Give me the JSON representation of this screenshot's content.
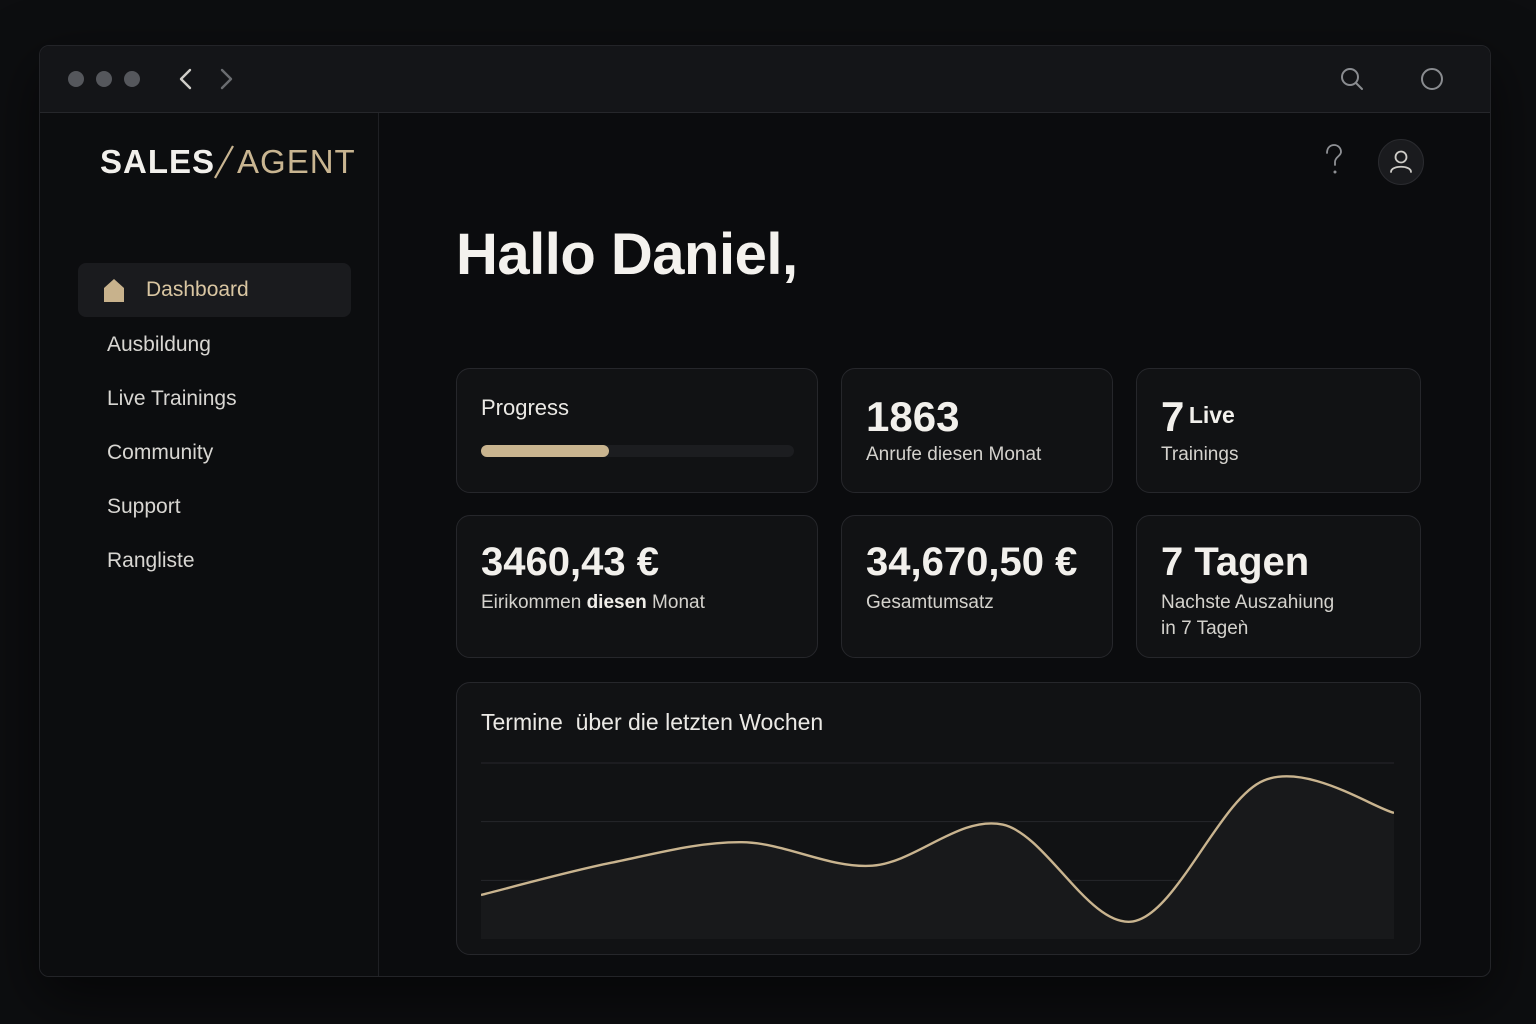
{
  "brand": {
    "part1": "SALES",
    "part2": "AGENT"
  },
  "sidebar": {
    "items": [
      {
        "label": "Dashboard",
        "active": true
      },
      {
        "label": "Ausbildung"
      },
      {
        "label": "Live Trainings"
      },
      {
        "label": "Community"
      },
      {
        "label": "Support"
      },
      {
        "label": "Rangliste"
      }
    ]
  },
  "header": {
    "help_icon": "question-icon",
    "profile_icon": "user-icon"
  },
  "greeting": "Hallo Daniel,",
  "cards": {
    "progress": {
      "title": "Progress",
      "value": 0.41
    },
    "calls": {
      "value": "1863",
      "label": "Anrufe diesen Monat"
    },
    "trainings": {
      "value": "7",
      "value_suffix": "Live",
      "label": "Trainings"
    },
    "income": {
      "value": "3460,43 €",
      "label_pre": "Eirikommen ",
      "label_bold": "diesen",
      "label_post": " Monat"
    },
    "revenue": {
      "value": "34,670,50 €",
      "label": "Gesamtumsatz"
    },
    "payout": {
      "value": "7 Tagen",
      "label_line1": "Nachste Auszahiung",
      "label_line2": "in 7 Tageǹ"
    }
  },
  "colors": {
    "accent": "#c9b48f",
    "background": "#0b0c0e",
    "card": "#111214"
  },
  "chart_data": {
    "type": "line",
    "title": "Termine  über die letzten Wochen",
    "values": [
      1.5,
      2.6,
      3.3,
      2.5,
      3.9,
      0.6,
      5.4,
      4.3
    ],
    "ylim": [
      0,
      6
    ],
    "grid": true
  }
}
